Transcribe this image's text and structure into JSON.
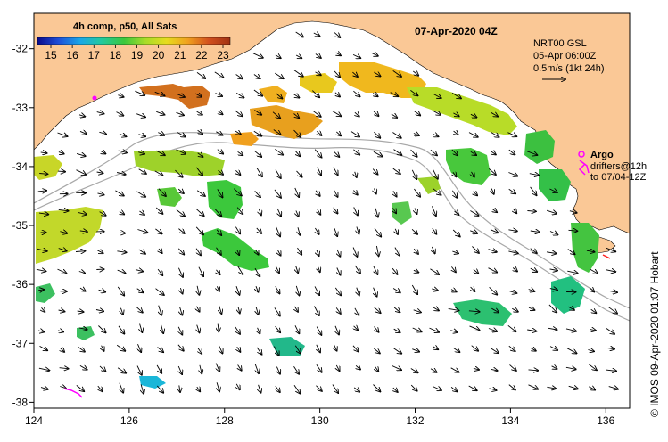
{
  "title_date": "07-Apr-2020 04Z",
  "colorbar": {
    "title": "4h comp, p50, All Sats",
    "ticks": [
      "15",
      "16",
      "17",
      "18",
      "19",
      "20",
      "21",
      "22",
      "23"
    ],
    "stops": [
      "#0a0a8c",
      "#1e4fd8",
      "#1aa6e8",
      "#22c9a0",
      "#3cc83c",
      "#a8dc28",
      "#e6dc1e",
      "#f0a01e",
      "#d2501e",
      "#a03214"
    ]
  },
  "current_info": {
    "line1": "NRT00 GSL",
    "line2": "05-Apr 06:00Z",
    "line3": "0.5m/s (1kt 24h)"
  },
  "legend": {
    "argo_label": "Argo",
    "drifters_line1": "drifters@12h",
    "drifters_line2": "to 07/04-12Z"
  },
  "credit": "© IMOS 09-Apr-2020 01:07 Hobart",
  "axes": {
    "lon_ticks": [
      "124",
      "126",
      "128",
      "130",
      "132",
      "134",
      "136"
    ],
    "lat_ticks": [
      "-32",
      "-33",
      "-34",
      "-35",
      "-36",
      "-37",
      "-38"
    ]
  },
  "colors": {
    "land": "#fac896",
    "shelf": "#a8a8a8",
    "argo": "#ff00ff",
    "drifter": "#ff00ff"
  }
}
